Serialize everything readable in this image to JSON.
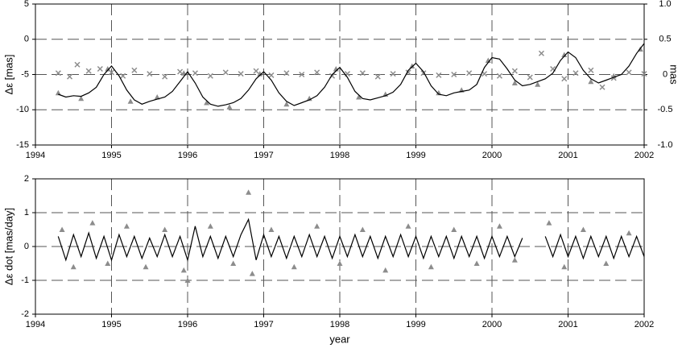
{
  "chart_data": [
    {
      "type": "line",
      "ylabel": "Δε [mas]",
      "y2label": "mas",
      "xlim": [
        1994,
        2002
      ],
      "xticks": [
        1994,
        1995,
        1996,
        1997,
        1998,
        1999,
        2000,
        2001,
        2002
      ],
      "ylim": [
        -15,
        5
      ],
      "yticks": [
        -15,
        -10,
        -5,
        0,
        5
      ],
      "y2lim": [
        -1,
        1
      ],
      "y2ticks": [
        {
          "value": -1,
          "label": "-1.0"
        },
        -0.5,
        0,
        0.5,
        {
          "value": 1,
          "label": "1.0"
        }
      ],
      "grid": true,
      "series": [
        {
          "marker": "cross",
          "color": "#8c8c8c",
          "axis": "y2",
          "x": [
            1994.3,
            1994.45,
            1994.55,
            1994.7,
            1994.85,
            1995.0,
            1995.15,
            1995.3,
            1995.5,
            1995.7,
            1995.9,
            1996.1,
            1996.3,
            1996.5,
            1996.7,
            1996.9,
            1997.1,
            1997.3,
            1997.5,
            1997.7,
            1997.9,
            1998.1,
            1998.3,
            1998.5,
            1998.7,
            1998.9,
            1999.1,
            1999.3,
            1999.5,
            1999.7,
            1999.9,
            2000.1,
            2000.3,
            2000.5,
            2000.65,
            2000.8,
            2000.95,
            2001.1,
            2001.3,
            2001.45,
            2001.6,
            2001.8,
            2002.0
          ],
          "values": [
            0.02,
            -0.03,
            0.14,
            0.05,
            0.08,
            0.03,
            -0.02,
            0.06,
            0.01,
            -0.03,
            0.04,
            0.02,
            -0.02,
            0.03,
            0.01,
            0.05,
            -0.01,
            0.02,
            0.0,
            0.03,
            -0.02,
            0.01,
            0.02,
            -0.03,
            0.01,
            0.03,
            0.02,
            -0.01,
            0.0,
            0.02,
            0.01,
            -0.02,
            0.05,
            -0.04,
            0.3,
            0.08,
            -0.06,
            0.02,
            0.06,
            -0.18,
            -0.05,
            0.03,
            0.01
          ]
        },
        {
          "marker": "triangle",
          "color": "#8c8c8c",
          "x": [
            1994.3,
            1994.6,
            1994.95,
            1995.25,
            1995.6,
            1995.95,
            1996.25,
            1996.55,
            1996.95,
            1997.3,
            1997.6,
            1997.95,
            1998.25,
            1998.6,
            1998.95,
            1999.3,
            1999.6,
            1999.95,
            2000.3,
            2000.6,
            2000.95,
            2001.3,
            2001.6,
            2001.95
          ],
          "values": [
            -7.6,
            -8.4,
            -4.2,
            -8.8,
            -8.2,
            -4.8,
            -9.0,
            -9.6,
            -4.9,
            -9.2,
            -8.4,
            -4.2,
            -8.2,
            -7.8,
            -3.8,
            -7.6,
            -7.2,
            -3.0,
            -6.2,
            -6.4,
            -2.2,
            -6.0,
            -5.2,
            -1.4
          ]
        },
        {
          "marker": "line",
          "color": "#000000",
          "x": [
            1994.3,
            1994.4,
            1994.5,
            1994.6,
            1994.7,
            1994.8,
            1994.9,
            1995.0,
            1995.1,
            1995.2,
            1995.3,
            1995.4,
            1995.5,
            1995.6,
            1995.7,
            1995.8,
            1995.9,
            1996.0,
            1996.1,
            1996.2,
            1996.3,
            1996.4,
            1996.5,
            1996.6,
            1996.7,
            1996.8,
            1996.9,
            1997.0,
            1997.1,
            1997.2,
            1997.3,
            1997.4,
            1997.5,
            1997.6,
            1997.7,
            1997.8,
            1997.9,
            1998.0,
            1998.1,
            1998.2,
            1998.3,
            1998.4,
            1998.5,
            1998.6,
            1998.7,
            1998.8,
            1998.9,
            1999.0,
            1999.1,
            1999.2,
            1999.3,
            1999.4,
            1999.5,
            1999.6,
            1999.7,
            1999.8,
            1999.9,
            2000.0,
            2000.1,
            2000.2,
            2000.3,
            2000.4,
            2000.5,
            2000.6,
            2000.7,
            2000.8,
            2000.9,
            2001.0,
            2001.1,
            2001.2,
            2001.3,
            2001.4,
            2001.5,
            2001.6,
            2001.7,
            2001.8,
            2001.9,
            2002.0
          ],
          "values": [
            -7.8,
            -8.2,
            -8.0,
            -8.1,
            -7.6,
            -6.8,
            -5.0,
            -3.8,
            -5.2,
            -7.2,
            -8.6,
            -9.2,
            -8.8,
            -8.5,
            -8.2,
            -7.4,
            -6.0,
            -4.6,
            -6.2,
            -8.2,
            -9.2,
            -9.5,
            -9.3,
            -9.0,
            -8.4,
            -7.2,
            -5.6,
            -4.6,
            -5.8,
            -7.6,
            -8.8,
            -9.4,
            -9.0,
            -8.6,
            -8.0,
            -6.8,
            -5.0,
            -4.0,
            -5.4,
            -7.4,
            -8.4,
            -8.6,
            -8.3,
            -8.0,
            -7.5,
            -6.4,
            -4.4,
            -3.4,
            -4.6,
            -6.6,
            -7.8,
            -8.0,
            -7.6,
            -7.4,
            -7.2,
            -6.4,
            -4.0,
            -2.6,
            -2.8,
            -4.2,
            -5.8,
            -6.6,
            -6.4,
            -6.0,
            -5.6,
            -4.8,
            -3.0,
            -1.8,
            -2.6,
            -4.4,
            -5.6,
            -6.2,
            -5.8,
            -5.4,
            -5.0,
            -3.8,
            -2.0,
            -0.6
          ]
        }
      ]
    },
    {
      "type": "line",
      "ylabel": "Δε dot [mas/day]",
      "xlabel": "year",
      "xlim": [
        1994,
        2002
      ],
      "xticks": [
        1994,
        1995,
        1996,
        1997,
        1998,
        1999,
        2000,
        2001,
        2002
      ],
      "ylim": [
        -2,
        2
      ],
      "yticks": [
        -2,
        -1,
        0,
        1,
        2
      ],
      "grid": true,
      "series": [
        {
          "marker": "triangle",
          "color": "#8c8c8c",
          "x": [
            1994.35,
            1994.5,
            1994.75,
            1994.95,
            1995.2,
            1995.45,
            1995.7,
            1995.95,
            1996.0,
            1996.3,
            1996.6,
            1996.8,
            1996.85,
            1997.1,
            1997.4,
            1997.7,
            1998.0,
            1998.3,
            1998.6,
            1998.9,
            1999.2,
            1999.5,
            1999.8,
            2000.1,
            2000.3,
            2000.75,
            2000.95,
            2001.2,
            2001.5,
            2001.8
          ],
          "values": [
            0.5,
            -0.6,
            0.7,
            -0.5,
            0.6,
            -0.6,
            0.5,
            -0.7,
            -1.0,
            0.6,
            -0.5,
            1.6,
            -0.8,
            0.5,
            -0.6,
            0.6,
            -0.5,
            0.5,
            -0.7,
            0.6,
            -0.6,
            0.5,
            -0.5,
            0.6,
            -0.4,
            0.7,
            -0.6,
            0.5,
            -0.5,
            0.4
          ]
        },
        {
          "marker": "line",
          "color": "#000000",
          "x": [
            1994.3,
            1994.4,
            1994.5,
            1994.6,
            1994.7,
            1994.8,
            1994.9,
            1995.0,
            1995.1,
            1995.2,
            1995.3,
            1995.4,
            1995.5,
            1995.6,
            1995.7,
            1995.8,
            1995.9,
            1996.0,
            1996.1,
            1996.2,
            1996.3,
            1996.4,
            1996.5,
            1996.6,
            1996.7,
            1996.8,
            1996.9,
            1997.0,
            1997.1,
            1997.2,
            1997.3,
            1997.4,
            1997.5,
            1997.6,
            1997.7,
            1997.8,
            1997.9,
            1998.0,
            1998.1,
            1998.2,
            1998.3,
            1998.4,
            1998.5,
            1998.6,
            1998.7,
            1998.8,
            1998.9,
            1999.0,
            1999.1,
            1999.2,
            1999.3,
            1999.4,
            1999.5,
            1999.6,
            1999.7,
            1999.8,
            1999.9,
            2000.0,
            2000.1,
            2000.2,
            2000.3,
            2000.4,
            2000.5,
            2000.6,
            2000.7,
            2000.8,
            2000.9,
            2001.0,
            2001.1,
            2001.2,
            2001.3,
            2001.4,
            2001.5,
            2001.6,
            2001.7,
            2001.8,
            2001.9,
            2002.0
          ],
          "values": [
            0.3,
            -0.4,
            0.35,
            -0.3,
            0.4,
            -0.35,
            0.3,
            -0.4,
            0.35,
            -0.3,
            0.3,
            -0.35,
            0.25,
            -0.3,
            0.35,
            -0.3,
            0.3,
            -0.4,
            0.6,
            -0.3,
            0.3,
            -0.35,
            0.3,
            -0.3,
            0.35,
            0.8,
            -0.4,
            0.35,
            -0.3,
            0.3,
            -0.35,
            0.3,
            -0.3,
            0.35,
            -0.3,
            0.3,
            -0.35,
            0.3,
            -0.3,
            0.35,
            -0.3,
            0.3,
            -0.35,
            0.3,
            -0.3,
            0.35,
            -0.3,
            0.3,
            -0.35,
            0.3,
            -0.3,
            0.3,
            -0.35,
            0.3,
            -0.3,
            0.3,
            -0.35,
            0.3,
            -0.3,
            0.3,
            -0.3,
            0.25,
            null,
            null,
            0.3,
            -0.3,
            0.35,
            -0.3,
            0.3,
            -0.35,
            0.3,
            -0.3,
            0.3,
            -0.35,
            0.3,
            -0.3,
            0.3,
            -0.3
          ]
        }
      ]
    }
  ]
}
